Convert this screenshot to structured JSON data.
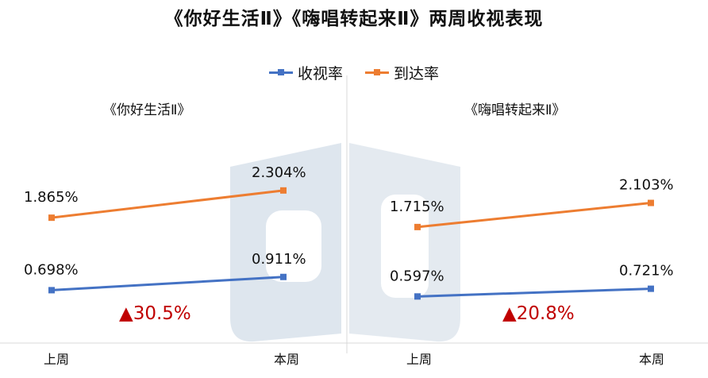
{
  "title": "《你好生活Ⅱ》《嗨唱转起来Ⅱ》两周收视表现",
  "legend": [
    {
      "label": "收视率",
      "color": "#4472C4"
    },
    {
      "label": "到达率",
      "color": "#ED7D31"
    }
  ],
  "chart_data": [
    {
      "type": "line",
      "title": "《你好生活Ⅱ》",
      "categories": [
        "上周",
        "本周"
      ],
      "series": [
        {
          "name": "收视率",
          "values": [
            0.698,
            0.911
          ],
          "labels": [
            "0.698%",
            "0.911%"
          ],
          "color": "#4472C4"
        },
        {
          "name": "到达率",
          "values": [
            1.865,
            2.304
          ],
          "labels": [
            "1.865%",
            "2.304%"
          ],
          "color": "#ED7D31"
        }
      ],
      "annotation": {
        "text": "▲30.5%",
        "color": "#C00000"
      }
    },
    {
      "type": "line",
      "title": "《嗨唱转起来Ⅱ》",
      "categories": [
        "上周",
        "本周"
      ],
      "series": [
        {
          "name": "收视率",
          "values": [
            0.597,
            0.721
          ],
          "labels": [
            "0.597%",
            "0.721%"
          ],
          "color": "#4472C4"
        },
        {
          "name": "到达率",
          "values": [
            1.715,
            2.103
          ],
          "labels": [
            "1.715%",
            "2.103%"
          ],
          "color": "#ED7D31"
        }
      ],
      "annotation": {
        "text": "▲20.8%",
        "color": "#C00000"
      }
    }
  ]
}
